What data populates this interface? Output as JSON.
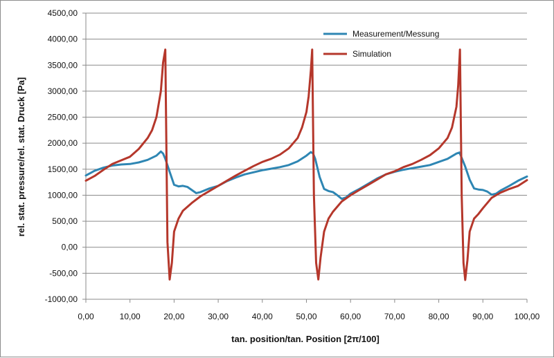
{
  "chart_data": {
    "type": "line",
    "xlabel": "tan. position/tan. Position [2π/100]",
    "ylabel": "rel. stat. pressure/rel. stat. Druck [Pa]",
    "xlim": [
      0,
      100
    ],
    "ylim": [
      -1000,
      4500
    ],
    "x_ticks": [
      "0,00",
      "10,00",
      "20,00",
      "30,00",
      "40,00",
      "50,00",
      "60,00",
      "70,00",
      "80,00",
      "90,00",
      "100,00"
    ],
    "y_ticks": [
      "4500,00",
      "4000,00",
      "3500,00",
      "3000,00",
      "2500,00",
      "2000,00",
      "1500,00",
      "1000,00",
      "500,00",
      "0,00",
      "-500,00",
      "-1000,00"
    ],
    "grid": "horizontal",
    "legend_position": "top-right",
    "colors": {
      "measurement": "#2e86b3",
      "simulation": "#b5372b"
    },
    "series": [
      {
        "name": "Measurement/Messung",
        "x": [
          0,
          2,
          4,
          6,
          8,
          10,
          12,
          14,
          16,
          17,
          17.5,
          18,
          19,
          20,
          21,
          22,
          23,
          24,
          25,
          26,
          28,
          30,
          32,
          34,
          36,
          38,
          40,
          42,
          44,
          46,
          48,
          50,
          51,
          51.5,
          52,
          53,
          54,
          55,
          56,
          57,
          58,
          59,
          60,
          62,
          64,
          66,
          68,
          70,
          72,
          74,
          76,
          78,
          80,
          82,
          84,
          84.7,
          85,
          86,
          87,
          88,
          89,
          90,
          91,
          92,
          93,
          94,
          96,
          98,
          100
        ],
        "y": [
          1380,
          1470,
          1530,
          1570,
          1590,
          1600,
          1630,
          1680,
          1760,
          1840,
          1800,
          1700,
          1450,
          1200,
          1170,
          1180,
          1160,
          1100,
          1040,
          1060,
          1130,
          1180,
          1270,
          1340,
          1400,
          1440,
          1480,
          1510,
          1540,
          1580,
          1650,
          1760,
          1830,
          1800,
          1700,
          1350,
          1120,
          1080,
          1060,
          1000,
          930,
          960,
          1030,
          1120,
          1220,
          1320,
          1400,
          1450,
          1490,
          1520,
          1550,
          1580,
          1640,
          1700,
          1800,
          1820,
          1760,
          1550,
          1300,
          1130,
          1110,
          1100,
          1070,
          1010,
          1030,
          1090,
          1180,
          1280,
          1360
        ]
      },
      {
        "name": "Simulation",
        "x": [
          0,
          2,
          4,
          6,
          8,
          10,
          12,
          14,
          15,
          16,
          17,
          17.5,
          18,
          18.5,
          19,
          19.5,
          20,
          21,
          22,
          24,
          26,
          28,
          30,
          32,
          34,
          36,
          38,
          40,
          42,
          44,
          46,
          48,
          49,
          50,
          50.5,
          51,
          51.3,
          51.7,
          52.2,
          52.7,
          53.2,
          54,
          55,
          56,
          58,
          60,
          62,
          64,
          66,
          68,
          70,
          72,
          74,
          76,
          78,
          80,
          82,
          83,
          84,
          84.4,
          84.8,
          85.2,
          85.6,
          86,
          86.5,
          87,
          88,
          89,
          90,
          92,
          94,
          96,
          98,
          100
        ],
        "y": [
          1280,
          1370,
          1490,
          1600,
          1670,
          1740,
          1890,
          2100,
          2250,
          2500,
          3000,
          3550,
          3800,
          100,
          -620,
          -300,
          300,
          550,
          700,
          850,
          980,
          1080,
          1180,
          1280,
          1380,
          1470,
          1560,
          1640,
          1700,
          1780,
          1900,
          2100,
          2300,
          2600,
          2900,
          3400,
          3800,
          1000,
          -300,
          -620,
          -200,
          300,
          550,
          680,
          880,
          1000,
          1100,
          1200,
          1300,
          1400,
          1460,
          1540,
          1600,
          1680,
          1770,
          1900,
          2100,
          2300,
          2700,
          3100,
          3800,
          1000,
          -300,
          -630,
          -250,
          300,
          550,
          640,
          750,
          950,
          1050,
          1120,
          1180,
          1290
        ]
      }
    ]
  }
}
